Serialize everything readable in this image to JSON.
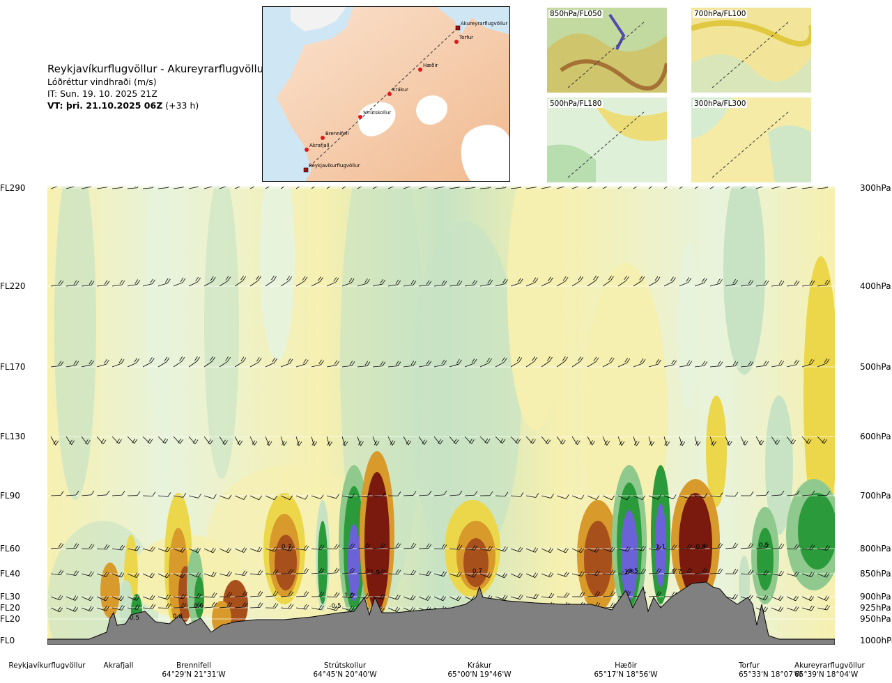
{
  "header": {
    "title": "Reykjavíkurflugvöllur - Akureyrarflugvöllur",
    "subtitle": "Lóðréttur vindhraði (m/s)",
    "issue_time": "IT: Sun. 19. 10. 2025 21Z",
    "valid_time_bold": "VT: þri. 21.10.2025 06Z",
    "valid_offset": " (+33 h)"
  },
  "route_map": {
    "labels": [
      "Akureyrarflugvöllur",
      "Torfur",
      "Hæðir",
      "Krákur",
      "Strútskollur",
      "Brennifell",
      "Akrafjall",
      "Reykjavíkurflugvöllur"
    ]
  },
  "thumbnails": [
    {
      "label": "850hPa/FL050"
    },
    {
      "label": "700hPa/FL100"
    },
    {
      "label": "500hPa/FL180"
    },
    {
      "label": "300hPa/FL300"
    }
  ],
  "levels_left": [
    "FL290",
    "FL220",
    "FL170",
    "FL130",
    "FL90",
    "FL60",
    "FL40",
    "FL30",
    "FL20",
    "FL20",
    "FL0"
  ],
  "levels_right": [
    "300hPa",
    "400hPa",
    "500hPa",
    "600hPa",
    "700hPa",
    "800hPa",
    "850hPa",
    "900hPa",
    "925hPa",
    "950hPa",
    "1000hPa"
  ],
  "waypoints": [
    {
      "name": "Reykjavíkurflugvöllur",
      "coord": ""
    },
    {
      "name": "Akrafjall",
      "coord": ""
    },
    {
      "name": "Brennifell",
      "coord": "64°29'N 21°31'W"
    },
    {
      "name": "Strútskollur",
      "coord": "64°45'N 20°40'W"
    },
    {
      "name": "Krákur",
      "coord": "65°00'N 19°46'W"
    },
    {
      "name": "Hæðir",
      "coord": "65°17'N 18°56'W"
    },
    {
      "name": "Torfur",
      "coord": "65°33'N 18°07'W"
    },
    {
      "name": "Akureyrarflugvöllur",
      "coord": "65°39'N 18°04'W"
    }
  ],
  "contour_values": [
    "0.5",
    "0.7",
    "0.8",
    "0.6",
    "-0.5",
    "1.0",
    "1.9",
    "0.7",
    "-0.5",
    "-1.8",
    "1.1",
    "1.7",
    "-0.9",
    "0.5"
  ],
  "colors": {
    "strong_down": "#7a1a0e",
    "mod_down": "#a8501c",
    "down": "#d89a2a",
    "weak_down": "#ecd74a",
    "faint_down": "#f6f0b0",
    "faint_up": "#e8f3dc",
    "weak_up": "#c7e3c4",
    "up": "#8fc98e",
    "mod_up": "#2b9a3b",
    "strong_up": "#1a7a2a",
    "extreme_up": "#6b62d8",
    "terrain": "#808080"
  }
}
